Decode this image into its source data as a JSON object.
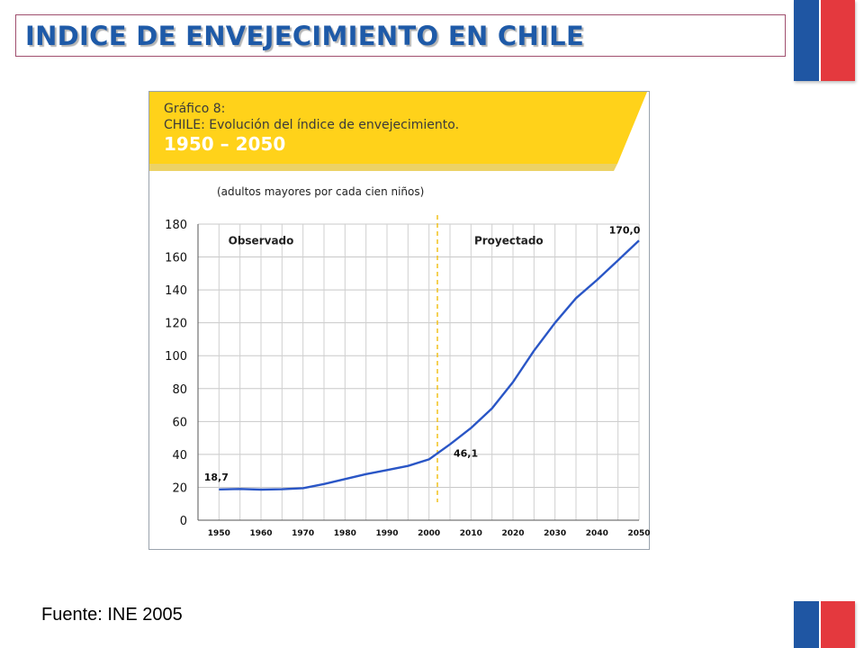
{
  "slide": {
    "title": "INDICE DE ENVEJECIMIENTO EN CHILE",
    "source": "Fuente: INE 2005",
    "colors": {
      "title": "#1e5aa8",
      "flag_blue": "#1f56a3",
      "flag_red": "#e4393e",
      "banner": "#ffd21a",
      "line": "#2a56c6"
    }
  },
  "figure": {
    "label": "Gráfico 8:",
    "title": "CHILE: Evolución del índice de envejecimiento.",
    "period": "1950 – 2050"
  },
  "chart_data": {
    "type": "line",
    "subtitle": "(adultos mayores por cada cien niños)",
    "xlabel": "",
    "ylabel": "",
    "xlim": [
      1945,
      2050
    ],
    "ylim": [
      0,
      180
    ],
    "x_ticks": [
      "1950",
      "1960",
      "1970",
      "1980",
      "1990",
      "2000",
      "2010",
      "2020",
      "2030",
      "2040",
      "2050"
    ],
    "y_ticks": [
      "0",
      "20",
      "40",
      "60",
      "80",
      "100",
      "120",
      "140",
      "160",
      "180"
    ],
    "grid": true,
    "divider_x": 2002,
    "regions": [
      {
        "label": "Observado",
        "x": 1960
      },
      {
        "label": "Proyectado",
        "x": 2019
      }
    ],
    "series": [
      {
        "x": [
          1950,
          1955,
          1960,
          1965,
          1970,
          1975,
          1980,
          1985,
          1990,
          1995,
          2000,
          2005,
          2010,
          2015,
          2020,
          2025,
          2030,
          2035,
          2040,
          2045,
          2050
        ],
        "y": [
          18.7,
          19.0,
          18.6,
          18.8,
          19.5,
          22.0,
          25.0,
          28.0,
          30.5,
          33.0,
          37.0,
          46.1,
          56.0,
          68.0,
          84.0,
          103.0,
          120.0,
          135.0,
          146.0,
          158.0,
          170.0
        ]
      }
    ],
    "annotations": [
      {
        "text": "18,7",
        "x": 1950,
        "y": 18.7
      },
      {
        "text": "46,1",
        "x": 2005,
        "y": 46.1
      },
      {
        "text": "170,0",
        "x": 2050,
        "y": 170.0
      }
    ]
  }
}
